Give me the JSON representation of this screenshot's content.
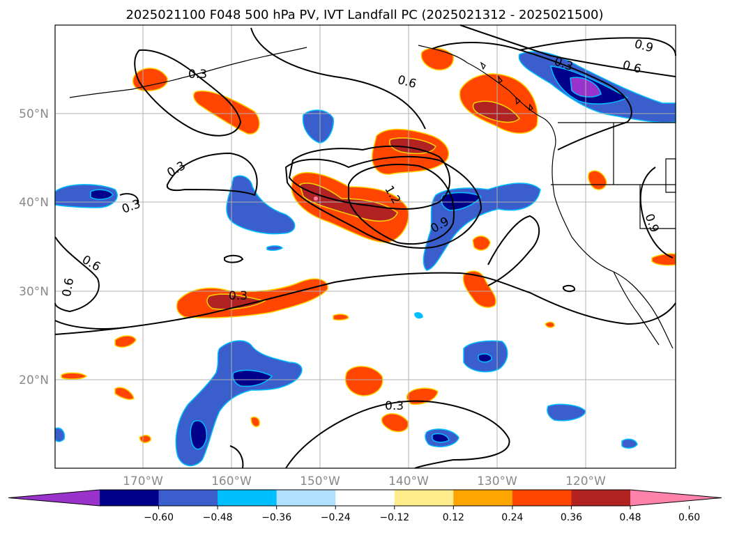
{
  "title": "2025021100 F048 500 hPa PV, IVT Landfall PC (2025021312 - 2025021500)",
  "map": {
    "lat_ticks": [
      "50°N",
      "40°N",
      "30°N",
      "20°N"
    ],
    "lon_ticks": [
      "170°W",
      "160°W",
      "150°W",
      "140°W",
      "130°W",
      "120°W"
    ],
    "gridlines": true,
    "contour_labels": [
      "0.3",
      "0.3",
      "0.3",
      "0.3",
      "0.6",
      "0.6",
      "0.6",
      "0.9",
      "0.9",
      "1.2",
      "0.3",
      "0.6",
      "0.9",
      "0.3"
    ]
  },
  "colorbar": {
    "ticks": [
      "−0.60",
      "−0.48",
      "−0.36",
      "−0.24",
      "−0.12",
      "0.12",
      "0.24",
      "0.36",
      "0.48",
      "0.60"
    ],
    "colors": [
      "#9933cc",
      "#00008b",
      "#3a5fcd",
      "#00bfff",
      "#b0e2ff",
      "#ffffff",
      "#ffec8b",
      "#ffa500",
      "#ff4500",
      "#b22222",
      "#ff82ab"
    ]
  }
}
